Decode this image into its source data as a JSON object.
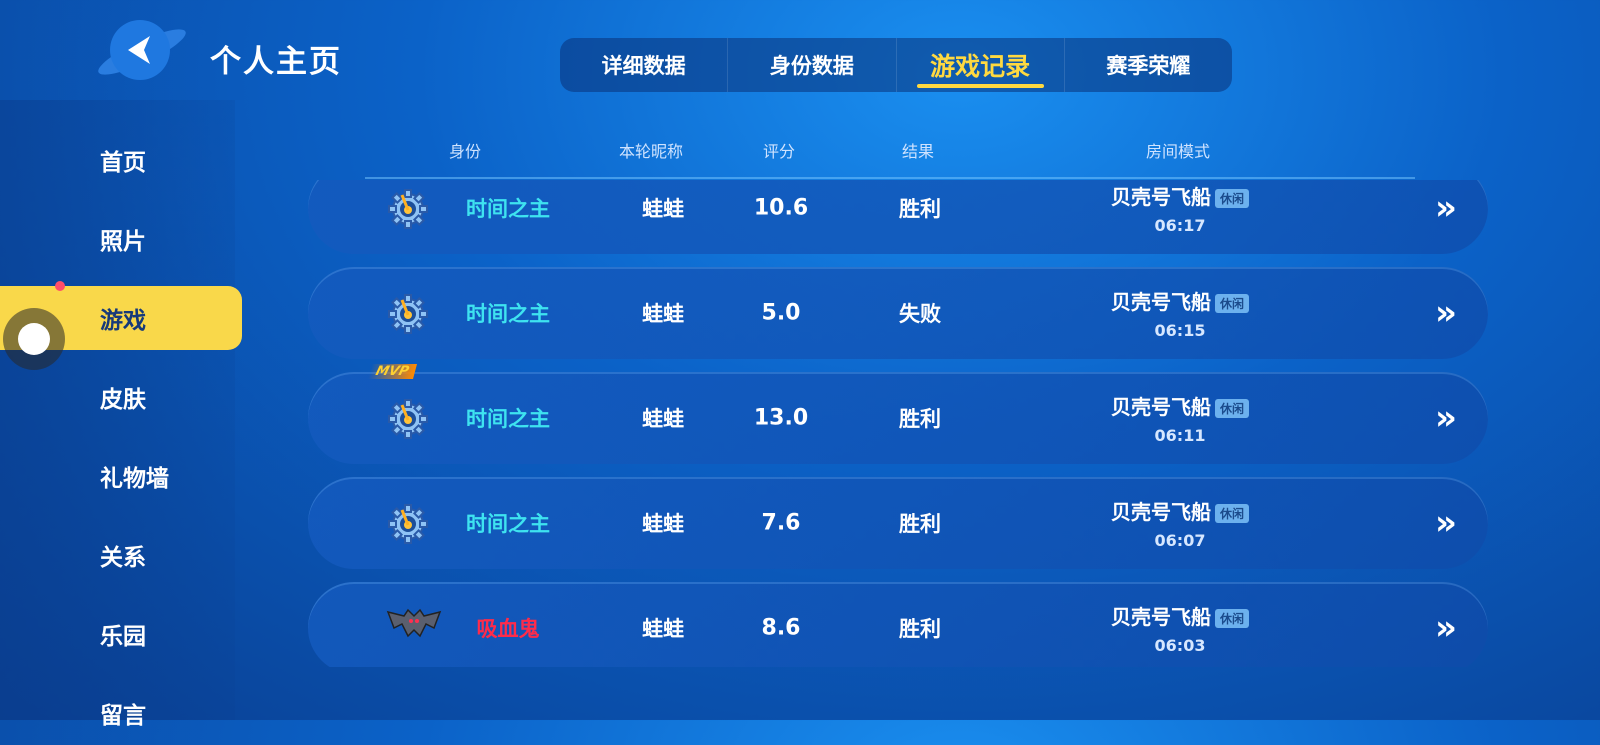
{
  "header": {
    "title": "个人主页",
    "back_icon": "planet-back-icon"
  },
  "tabs": [
    {
      "label": "详细数据"
    },
    {
      "label": "身份数据"
    },
    {
      "label": "游戏记录",
      "active": true
    },
    {
      "label": "赛季荣耀"
    }
  ],
  "sidebar": {
    "items": [
      {
        "label": "首页"
      },
      {
        "label": "照片"
      },
      {
        "label": "游戏",
        "active": true
      },
      {
        "label": "皮肤"
      },
      {
        "label": "礼物墙"
      },
      {
        "label": "关系"
      },
      {
        "label": "乐园"
      },
      {
        "label": "留言"
      }
    ]
  },
  "columns": {
    "role": "身份",
    "nickname": "本轮昵称",
    "score": "评分",
    "result": "结果",
    "room": "房间模式"
  },
  "records": [
    {
      "icon": "gear-clock-icon",
      "role": "时间之主",
      "role_color": "#3ee3f0",
      "nickname": "蛙蛙",
      "score": "10.6",
      "result": "胜利",
      "room": "贝壳号飞船",
      "mode": "休闲",
      "time": "06:17",
      "mvp": false
    },
    {
      "icon": "gear-clock-icon",
      "role": "时间之主",
      "role_color": "#3ee3f0",
      "nickname": "蛙蛙",
      "score": "5.0",
      "result": "失败",
      "room": "贝壳号飞船",
      "mode": "休闲",
      "time": "06:15",
      "mvp": false
    },
    {
      "icon": "gear-clock-icon",
      "role": "时间之主",
      "role_color": "#3ee3f0",
      "nickname": "蛙蛙",
      "score": "13.0",
      "result": "胜利",
      "room": "贝壳号飞船",
      "mode": "休闲",
      "time": "06:11",
      "mvp": true,
      "mvp_label": "MVP"
    },
    {
      "icon": "gear-clock-icon",
      "role": "时间之主",
      "role_color": "#3ee3f0",
      "nickname": "蛙蛙",
      "score": "7.6",
      "result": "胜利",
      "room": "贝壳号飞船",
      "mode": "休闲",
      "time": "06:07",
      "mvp": false
    },
    {
      "icon": "bat-icon",
      "role": "吸血鬼",
      "role_color": "#ff2b4a",
      "nickname": "蛙蛙",
      "score": "8.6",
      "result": "胜利",
      "room": "贝壳号飞船",
      "mode": "休闲",
      "time": "06:03",
      "mvp": false
    }
  ]
}
